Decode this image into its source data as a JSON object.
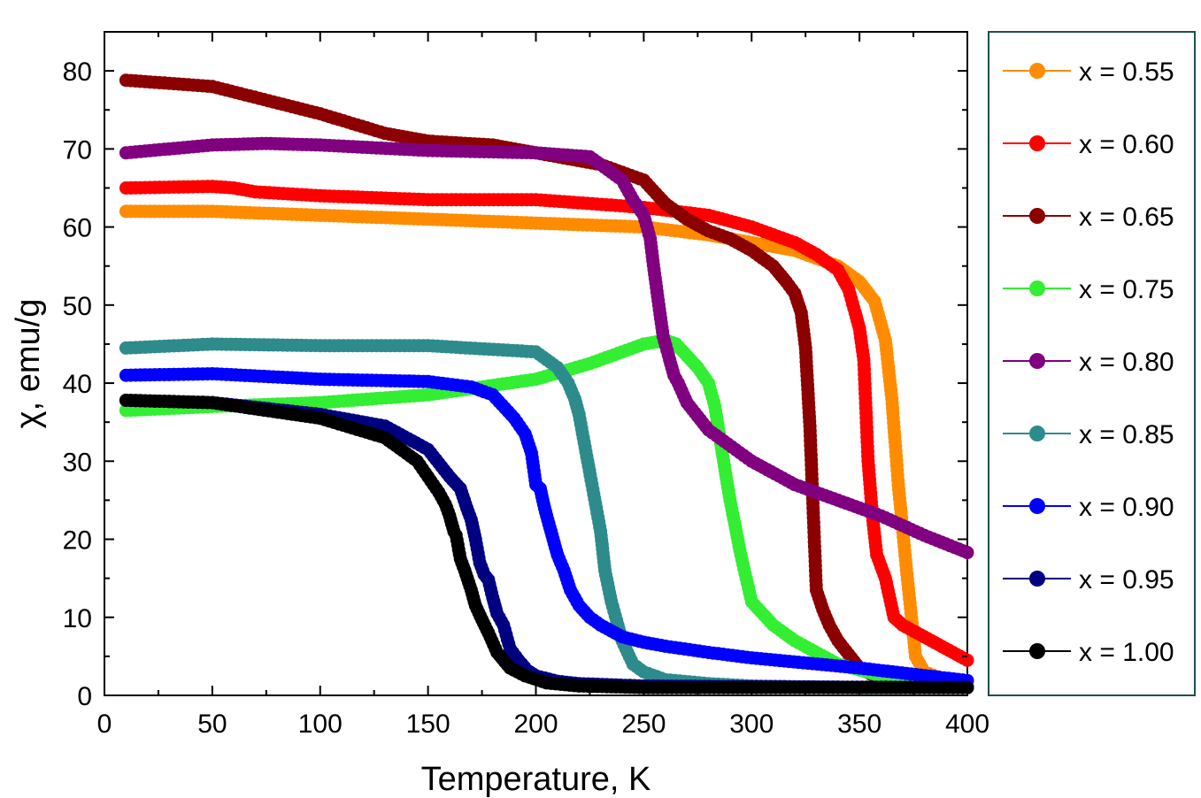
{
  "chart_data": {
    "type": "scatter",
    "title": "",
    "xlabel": "Temperature, K",
    "ylabel": "χ, emu/g",
    "xlim": [
      0,
      400
    ],
    "ylim": [
      0,
      85
    ],
    "x_ticks": [
      0,
      50,
      100,
      150,
      200,
      250,
      300,
      350,
      400
    ],
    "y_ticks": [
      0,
      10,
      20,
      30,
      40,
      50,
      60,
      70,
      80
    ],
    "x_tick_labels": [
      "0",
      "50",
      "100",
      "150",
      "200",
      "250",
      "300",
      "350",
      "400"
    ],
    "y_tick_labels": [
      "0",
      "10",
      "20",
      "30",
      "40",
      "50",
      "60",
      "70",
      "80"
    ],
    "grid": false,
    "legend_position": "right-outside",
    "series": [
      {
        "name": "x = 0.55",
        "color": "#FF8C00",
        "x": [
          10,
          50,
          100,
          150,
          200,
          250,
          280,
          300,
          320,
          340,
          350,
          357,
          362,
          365,
          368,
          372,
          376,
          380,
          390,
          400
        ],
        "y": [
          62,
          62,
          61.5,
          61,
          60.5,
          60,
          59,
          58,
          57,
          55,
          53,
          50.5,
          45.5,
          38,
          27,
          15.5,
          5,
          3,
          2,
          1.8
        ]
      },
      {
        "name": "x = 0.60",
        "color": "#FF0000",
        "x": [
          10,
          50,
          60,
          70,
          100,
          150,
          200,
          250,
          280,
          300,
          320,
          330,
          340,
          345,
          348,
          350,
          352,
          354,
          356,
          358,
          362,
          366,
          370,
          380,
          390,
          400
        ],
        "y": [
          65,
          65.2,
          65,
          64.5,
          64,
          63.5,
          63.5,
          62.5,
          61.5,
          60,
          58,
          56.5,
          54.5,
          52,
          49,
          47,
          43,
          30,
          23,
          18,
          15,
          10,
          9,
          7.5,
          6,
          4.5
        ]
      },
      {
        "name": "x = 0.65",
        "color": "#8B0000",
        "x": [
          10,
          50,
          100,
          130,
          150,
          180,
          200,
          230,
          250,
          260,
          270,
          280,
          290,
          300,
          310,
          316,
          320,
          323,
          325,
          327,
          330,
          333,
          336,
          340,
          350,
          360,
          375,
          390,
          400
        ],
        "y": [
          78.8,
          78,
          74.5,
          72,
          71,
          70.5,
          69.5,
          68,
          66,
          63,
          61,
          59.5,
          58.5,
          57,
          55,
          53,
          51.5,
          49,
          44.5,
          34.5,
          13.5,
          11,
          9,
          7,
          3.5,
          2,
          1.5,
          1.2,
          1
        ]
      },
      {
        "name": "x = 0.75",
        "color": "#33EE33",
        "x": [
          10,
          50,
          100,
          150,
          200,
          225,
          240,
          250,
          260,
          265,
          270,
          275,
          280,
          283,
          285,
          287,
          290,
          295,
          300,
          310,
          320,
          340,
          360,
          380,
          400
        ],
        "y": [
          36.5,
          37,
          37.5,
          38.5,
          40.5,
          42.5,
          44,
          45,
          45.5,
          45,
          43.5,
          42,
          40,
          37,
          33.5,
          30,
          25,
          18,
          12,
          9,
          7,
          4,
          2.5,
          1.8,
          1.2
        ]
      },
      {
        "name": "x = 0.80",
        "color": "#800080",
        "x": [
          10,
          50,
          75,
          100,
          150,
          200,
          225,
          240,
          245,
          250,
          253,
          255,
          257,
          259,
          262,
          264,
          266,
          270,
          280,
          300,
          320,
          340,
          360,
          380,
          400
        ],
        "y": [
          69.5,
          70.5,
          70.7,
          70.5,
          69.8,
          69.5,
          69,
          66,
          63.5,
          61.5,
          58.5,
          54,
          50,
          46,
          43,
          41,
          40,
          37.5,
          34,
          30,
          27,
          25,
          23,
          20.5,
          18.3
        ]
      },
      {
        "name": "x = 0.85",
        "color": "#2E8B8B",
        "x": [
          10,
          50,
          100,
          150,
          200,
          210,
          215,
          218,
          220,
          222,
          224,
          226,
          228,
          230,
          232,
          235,
          238,
          240,
          245,
          250,
          260,
          280,
          300,
          350,
          400
        ],
        "y": [
          44.5,
          45,
          44.8,
          44.8,
          44,
          42,
          40,
          38,
          36,
          33,
          30,
          27,
          24,
          21,
          16,
          12,
          9,
          7,
          4,
          3,
          2,
          1.5,
          1.2,
          1,
          1
        ]
      },
      {
        "name": "x = 0.90",
        "color": "#0000FF",
        "x": [
          10,
          50,
          100,
          150,
          170,
          180,
          190,
          195,
          198,
          200,
          202,
          204,
          206,
          208,
          210,
          213,
          216,
          220,
          225,
          230,
          240,
          250,
          260,
          280,
          300,
          350,
          400
        ],
        "y": [
          41,
          41.2,
          40.5,
          40.2,
          39.5,
          38.5,
          35.5,
          33.5,
          31,
          27,
          26.5,
          24,
          22,
          20,
          18,
          16,
          13.5,
          11.5,
          10,
          9,
          7.5,
          6.8,
          6.3,
          5.5,
          4.8,
          3.5,
          1.9
        ]
      },
      {
        "name": "x = 0.95",
        "color": "#000080",
        "x": [
          10,
          50,
          100,
          130,
          150,
          160,
          165,
          168,
          170,
          172,
          174,
          176,
          178,
          180,
          182,
          185,
          188,
          192,
          196,
          200,
          210,
          220,
          250,
          300,
          400
        ],
        "y": [
          37.8,
          37.5,
          36,
          34.5,
          31.5,
          28,
          26.5,
          24,
          22.5,
          20,
          17,
          15.5,
          14.8,
          12.5,
          10.5,
          9,
          6,
          4.5,
          3.2,
          2.5,
          1.8,
          1.5,
          1.2,
          1.1,
          1
        ]
      },
      {
        "name": "x = 1.00",
        "color": "#000000",
        "x": [
          10,
          50,
          100,
          130,
          145,
          150,
          155,
          158,
          160,
          162,
          163,
          165,
          167,
          170,
          172,
          175,
          178,
          182,
          188,
          195,
          205,
          220,
          250,
          300,
          400
        ],
        "y": [
          37.8,
          37.5,
          35.5,
          33,
          30,
          28,
          26,
          24.5,
          23,
          21,
          20.5,
          17.5,
          16,
          13.5,
          11.5,
          9.7,
          8,
          5.5,
          3.5,
          2.5,
          1.6,
          1.2,
          1,
          1,
          1
        ]
      }
    ]
  }
}
